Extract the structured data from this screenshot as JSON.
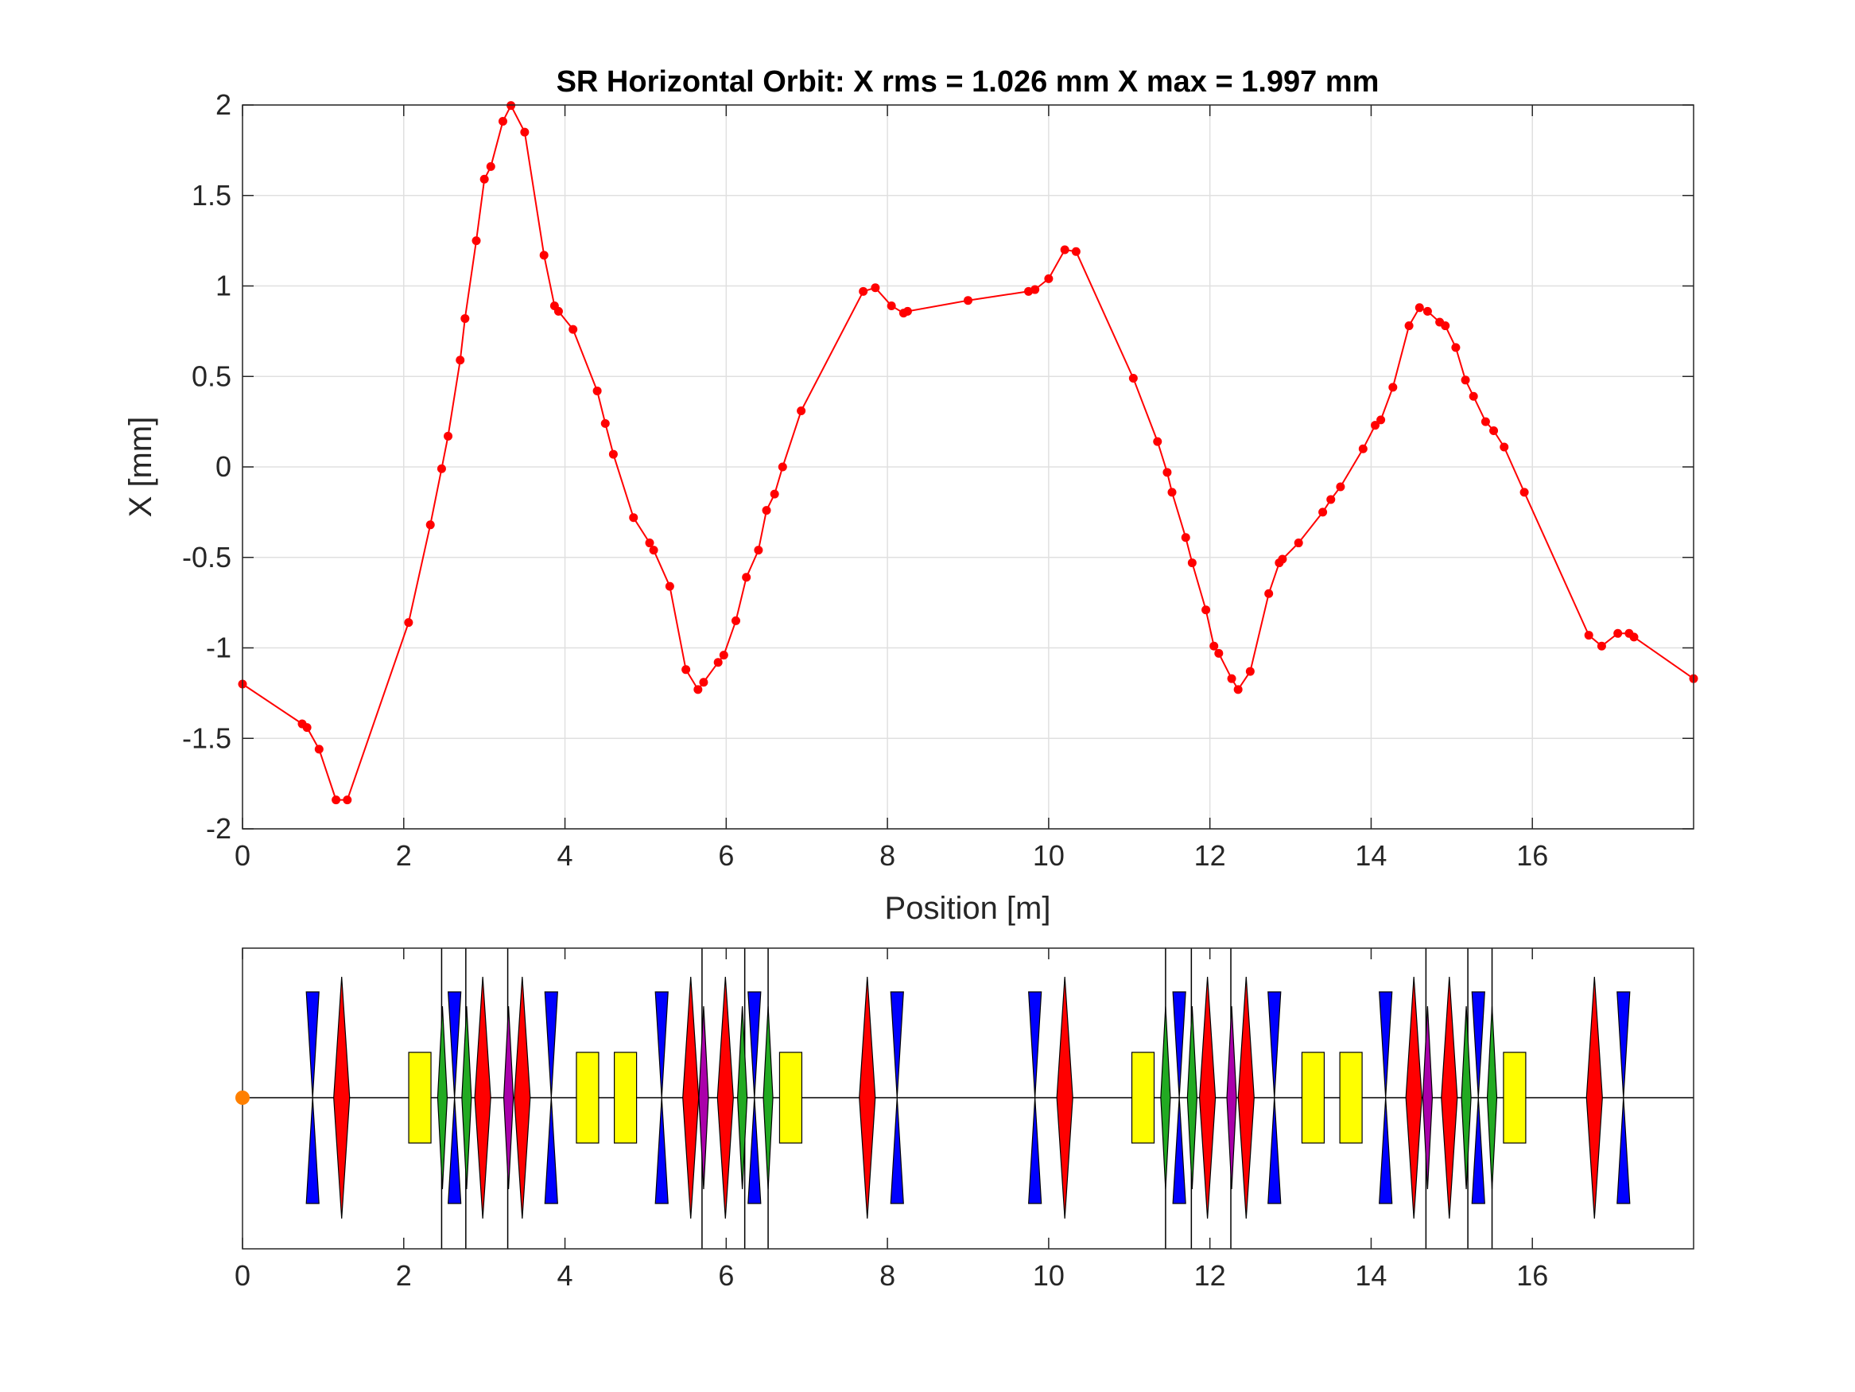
{
  "chart_data": [
    {
      "type": "line",
      "title": "SR Horizontal Orbit:  X rms  = 1.026 mm  X max = 1.997 mm",
      "xlabel": "Position [m]",
      "ylabel": "X [mm]",
      "xlim": [
        0,
        18
      ],
      "ylim": [
        -2,
        2
      ],
      "xticks": [
        0,
        2,
        4,
        6,
        8,
        10,
        12,
        14,
        16
      ],
      "yticks": [
        -2,
        -1.5,
        -1,
        -0.5,
        0,
        0.5,
        1,
        1.5,
        2
      ],
      "xtick_labels": [
        "0",
        "2",
        "4",
        "6",
        "8",
        "10",
        "12",
        "14",
        "16"
      ],
      "ytick_labels": [
        "-2",
        "-1.5",
        "-1",
        "-0.5",
        "0",
        "0.5",
        "1",
        "1.5",
        "2"
      ],
      "grid": true,
      "series_color": "#ff0000",
      "x": [
        0,
        0.74,
        0.8,
        0.95,
        1.16,
        1.3,
        2.06,
        2.33,
        2.47,
        2.55,
        2.7,
        2.76,
        2.9,
        3.0,
        3.08,
        3.23,
        3.33,
        3.5,
        3.74,
        3.87,
        3.92,
        4.1,
        4.4,
        4.5,
        4.6,
        4.85,
        5.05,
        5.1,
        5.3,
        5.5,
        5.65,
        5.72,
        5.9,
        5.97,
        6.12,
        6.25,
        6.4,
        6.5,
        6.6,
        6.7,
        6.93,
        7.7,
        7.85,
        8.05,
        8.2,
        8.25,
        9.0,
        9.75,
        9.83,
        10.0,
        10.2,
        10.34,
        11.05,
        11.35,
        11.47,
        11.53,
        11.7,
        11.78,
        11.95,
        12.05,
        12.11,
        12.27,
        12.35,
        12.5,
        12.73,
        12.86,
        12.9,
        13.1,
        13.4,
        13.5,
        13.62,
        13.9,
        14.05,
        14.12,
        14.27,
        14.47,
        14.6,
        14.7,
        14.85,
        14.92,
        15.05,
        15.17,
        15.27,
        15.42,
        15.52,
        15.65,
        15.9,
        16.7,
        16.86,
        17.06,
        17.2,
        17.26,
        18.0
      ],
      "y": [
        -1.2,
        -1.42,
        -1.44,
        -1.56,
        -1.84,
        -1.84,
        -0.86,
        -0.32,
        -0.01,
        0.17,
        0.59,
        0.82,
        1.25,
        1.59,
        1.66,
        1.91,
        1.997,
        1.85,
        1.17,
        0.89,
        0.86,
        0.76,
        0.42,
        0.24,
        0.07,
        -0.28,
        -0.42,
        -0.46,
        -0.66,
        -1.12,
        -1.23,
        -1.19,
        -1.08,
        -1.04,
        -0.85,
        -0.61,
        -0.46,
        -0.24,
        -0.15,
        0.0,
        0.31,
        0.97,
        0.99,
        0.89,
        0.85,
        0.86,
        0.92,
        0.97,
        0.98,
        1.04,
        1.2,
        1.19,
        0.49,
        0.14,
        -0.03,
        -0.14,
        -0.39,
        -0.53,
        -0.79,
        -0.99,
        -1.03,
        -1.17,
        -1.23,
        -1.13,
        -0.7,
        -0.53,
        -0.51,
        -0.42,
        -0.25,
        -0.18,
        -0.11,
        0.1,
        0.23,
        0.26,
        0.44,
        0.78,
        0.88,
        0.86,
        0.8,
        0.78,
        0.66,
        0.48,
        0.39,
        0.25,
        0.2,
        0.11,
        -0.14,
        -0.93,
        -0.99,
        -0.92,
        -0.92,
        -0.94,
        -1.17
      ]
    },
    {
      "type": "lattice",
      "xlim": [
        0,
        18
      ],
      "xticks": [
        0,
        2,
        4,
        6,
        8,
        10,
        12,
        14,
        16
      ],
      "xtick_labels": [
        "0",
        "2",
        "4",
        "6",
        "8",
        "10",
        "12",
        "14",
        "16"
      ],
      "marker_position": 0,
      "colors": {
        "quad_defocus": "#0000ff",
        "quad_focus": "#ff0000",
        "sextupole_green": "#22aa22",
        "sextupole_magenta": "#aa00aa",
        "dipole": "#ffff00",
        "marker": "#ff8000"
      },
      "elements": [
        {
          "kind": "quad_defocus",
          "s": 0.87
        },
        {
          "kind": "quad_focus",
          "s": 1.23
        },
        {
          "kind": "dipole",
          "s": 2.2
        },
        {
          "kind": "sextupole_green",
          "s": 2.48
        },
        {
          "kind": "quad_defocus",
          "s": 2.63
        },
        {
          "kind": "sextupole_green",
          "s": 2.78
        },
        {
          "kind": "quad_focus",
          "s": 2.98
        },
        {
          "kind": "sextupole_magenta",
          "s": 3.3
        },
        {
          "kind": "quad_focus",
          "s": 3.47
        },
        {
          "kind": "quad_defocus",
          "s": 3.83
        },
        {
          "kind": "dipole",
          "s": 4.28
        },
        {
          "kind": "dipole",
          "s": 4.75
        },
        {
          "kind": "quad_defocus",
          "s": 5.2
        },
        {
          "kind": "quad_focus",
          "s": 5.56
        },
        {
          "kind": "sextupole_magenta",
          "s": 5.72
        },
        {
          "kind": "quad_focus",
          "s": 5.99
        },
        {
          "kind": "sextupole_green",
          "s": 6.2
        },
        {
          "kind": "quad_defocus",
          "s": 6.35
        },
        {
          "kind": "sextupole_green",
          "s": 6.52
        },
        {
          "kind": "dipole",
          "s": 6.8
        },
        {
          "kind": "quad_focus",
          "s": 7.75
        },
        {
          "kind": "quad_defocus",
          "s": 8.12
        },
        {
          "kind": "quad_defocus",
          "s": 9.83
        },
        {
          "kind": "quad_focus",
          "s": 10.2
        },
        {
          "kind": "dipole",
          "s": 11.17
        },
        {
          "kind": "sextupole_green",
          "s": 11.45
        },
        {
          "kind": "quad_defocus",
          "s": 11.62
        },
        {
          "kind": "sextupole_green",
          "s": 11.78
        },
        {
          "kind": "quad_focus",
          "s": 11.97
        },
        {
          "kind": "sextupole_magenta",
          "s": 12.27
        },
        {
          "kind": "quad_focus",
          "s": 12.45
        },
        {
          "kind": "quad_defocus",
          "s": 12.8
        },
        {
          "kind": "dipole",
          "s": 13.28
        },
        {
          "kind": "dipole",
          "s": 13.75
        },
        {
          "kind": "quad_defocus",
          "s": 14.18
        },
        {
          "kind": "quad_focus",
          "s": 14.53
        },
        {
          "kind": "sextupole_magenta",
          "s": 14.7
        },
        {
          "kind": "quad_focus",
          "s": 14.97
        },
        {
          "kind": "sextupole_green",
          "s": 15.18
        },
        {
          "kind": "quad_defocus",
          "s": 15.33
        },
        {
          "kind": "sextupole_green",
          "s": 15.5
        },
        {
          "kind": "dipole",
          "s": 15.78
        },
        {
          "kind": "quad_focus",
          "s": 16.77
        },
        {
          "kind": "quad_defocus",
          "s": 17.13
        }
      ],
      "marker_lines": [
        2.47,
        2.77,
        3.29,
        5.7,
        6.23,
        6.52,
        11.45,
        11.77,
        12.26,
        14.68,
        15.2,
        15.5
      ]
    }
  ]
}
